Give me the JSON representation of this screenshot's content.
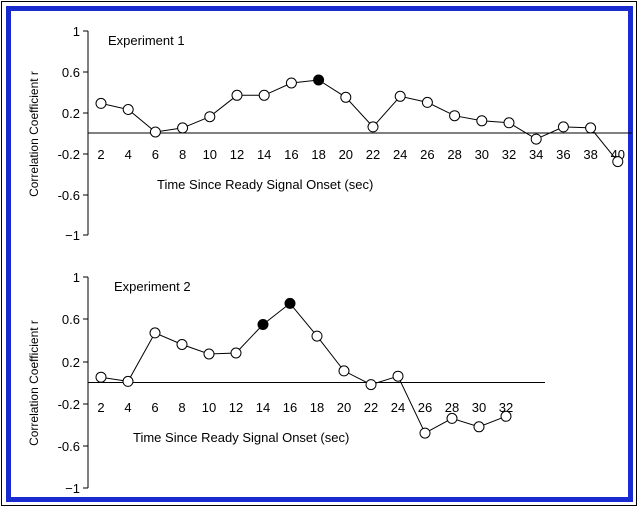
{
  "colors": {
    "border": "#1a2bd0",
    "axis": "#000000",
    "line": "#000000",
    "marker_open_fill": "#ffffff",
    "marker_filled": "#000000"
  },
  "chart_data": [
    {
      "type": "line",
      "title": "Experiment 1",
      "xlabel": "Time Since Ready Signal Onset (sec)",
      "ylabel": "Correlation Coefficient r",
      "yticks": [
        "1",
        "0.6",
        "0.2",
        "-0.2",
        "-0.6",
        "−1"
      ],
      "xticks": [
        "2",
        "4",
        "6",
        "8",
        "10",
        "12",
        "14",
        "16",
        "18",
        "20",
        "22",
        "24",
        "26",
        "28",
        "30",
        "32",
        "34",
        "36",
        "38",
        "40"
      ],
      "ylim": [
        -1,
        1
      ],
      "x": [
        2,
        4,
        6,
        8,
        10,
        12,
        14,
        16,
        18,
        20,
        22,
        24,
        26,
        28,
        30,
        32,
        34,
        36,
        38,
        40
      ],
      "values": [
        0.29,
        0.23,
        0.01,
        0.05,
        0.16,
        0.37,
        0.37,
        0.49,
        0.52,
        0.35,
        0.06,
        0.36,
        0.3,
        0.17,
        0.12,
        0.1,
        -0.06,
        0.06,
        0.05,
        -0.28
      ],
      "filled": [
        18
      ],
      "grid": false
    },
    {
      "type": "line",
      "title": "Experiment 2",
      "xlabel": "Time Since Ready Signal Onset (sec)",
      "ylabel": "Correlation Coefficient r",
      "yticks": [
        "1",
        "0.6",
        "0.2",
        "-0.2",
        "-0.6",
        "−1"
      ],
      "xticks": [
        "2",
        "4",
        "6",
        "8",
        "10",
        "12",
        "14",
        "16",
        "18",
        "20",
        "22",
        "24",
        "26",
        "28",
        "30",
        "32"
      ],
      "ylim": [
        -1,
        1
      ],
      "x": [
        2,
        4,
        6,
        8,
        10,
        12,
        14,
        16,
        18,
        20,
        22,
        24,
        26,
        28,
        30,
        32
      ],
      "values": [
        0.05,
        0.01,
        0.47,
        0.36,
        0.27,
        0.28,
        0.55,
        0.75,
        0.44,
        0.11,
        -0.02,
        0.06,
        -0.48,
        -0.34,
        -0.42,
        -0.32
      ],
      "filled": [
        14,
        16
      ],
      "grid": false
    }
  ]
}
